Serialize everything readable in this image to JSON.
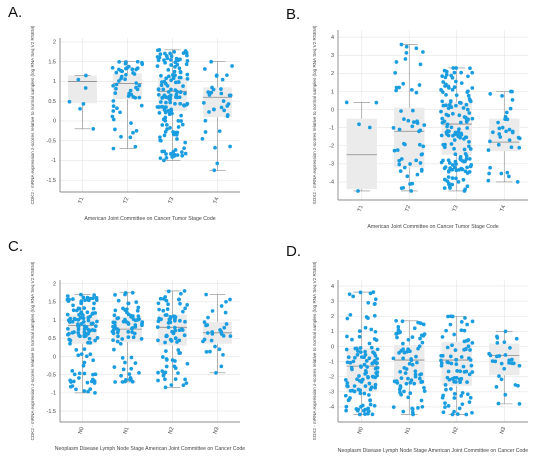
{
  "colors": {
    "point": "#1a9de0",
    "box": "#ebebeb",
    "whisker": "#888888",
    "axis": "#666666",
    "grid": "#e4e4e4",
    "text": "#444444"
  },
  "panels": [
    {
      "letter": "A."
    },
    {
      "letter": "B."
    },
    {
      "letter": "C."
    },
    {
      "letter": "D."
    }
  ],
  "chart_data": [
    {
      "type": "box",
      "panel": "A.",
      "ylabel": "CDK2 - mRNA expression z-scores relative to normal samples (log RNA Seq V2 RSEM)",
      "xlabel": "American Joint Committee on Cancer Tumor Stage Code",
      "categories": [
        "T1",
        "T2",
        "T3",
        "T4"
      ],
      "ylim": [
        -1.8,
        2.1
      ],
      "yticks": [
        -1.5,
        -1,
        -0.5,
        0,
        0.5,
        1,
        1.5,
        2
      ],
      "boxes": [
        {
          "min": -0.2,
          "q1": 0.45,
          "median": 1.0,
          "q3": 1.15,
          "max": 1.15,
          "n": 7
        },
        {
          "min": -0.7,
          "q1": 0.55,
          "median": 0.95,
          "q3": 1.2,
          "max": 1.5,
          "n": 55
        },
        {
          "min": -1.0,
          "q1": 0.25,
          "median": 0.75,
          "q3": 1.1,
          "max": 1.8,
          "n": 150
        },
        {
          "min": -1.25,
          "q1": 0.1,
          "median": 0.6,
          "q3": 0.85,
          "max": 1.5,
          "n": 35
        }
      ]
    },
    {
      "type": "box",
      "panel": "B.",
      "ylabel": "SOX2 - mRNA expression z-scores relative to normal samples (log RNA Seq V2 RSEM)",
      "xlabel": "American Joint Committee on Cancer Tumor Stage Code",
      "categories": [
        "T1",
        "T2",
        "T3",
        "T4"
      ],
      "ylim": [
        -5,
        4.4
      ],
      "yticks": [
        -4,
        -3,
        -2,
        -1,
        0,
        1,
        2,
        3,
        4
      ],
      "boxes": [
        {
          "min": -4.5,
          "q1": -4.4,
          "median": -2.5,
          "q3": -0.5,
          "max": 0.4,
          "n": 5
        },
        {
          "min": -4.5,
          "q1": -3.2,
          "median": -1.2,
          "q3": 0.1,
          "max": 3.6,
          "n": 55
        },
        {
          "min": -4.5,
          "q1": -2.5,
          "median": -0.8,
          "q3": 0.4,
          "max": 2.3,
          "n": 150
        },
        {
          "min": -4.0,
          "q1": -2.3,
          "median": -1.8,
          "q3": -0.5,
          "max": 1.0,
          "n": 35
        }
      ]
    },
    {
      "type": "box",
      "panel": "C.",
      "ylabel": "CDK2 - mRNA expression z-scores relative to normal samples (log RNA Seq V2 RSEM)",
      "xlabel": "Neoplasm Disease Lymph Node Stage American Joint Committee on Cancer Code",
      "categories": [
        "N0",
        "N1",
        "N2",
        "N3"
      ],
      "ylim": [
        -1.8,
        2.1
      ],
      "yticks": [
        -1.5,
        -1,
        -0.5,
        0,
        0.5,
        1,
        1.5,
        2
      ],
      "boxes": [
        {
          "min": -1.0,
          "q1": 0.35,
          "median": 0.85,
          "q3": 1.15,
          "max": 1.7,
          "n": 120
        },
        {
          "min": -0.7,
          "q1": 0.4,
          "median": 0.75,
          "q3": 1.1,
          "max": 1.75,
          "n": 80
        },
        {
          "min": -0.85,
          "q1": 0.3,
          "median": 0.8,
          "q3": 1.15,
          "max": 1.8,
          "n": 85
        },
        {
          "min": -0.45,
          "q1": 0.35,
          "median": 0.65,
          "q3": 0.95,
          "max": 1.7,
          "n": 30
        }
      ]
    },
    {
      "type": "box",
      "panel": "D.",
      "ylabel": "SOX2 - mRNA expression z-scores relative to normal samples (log RNA Seq V2 RSEM)",
      "xlabel": "Neoplasm Disease Lymph Node Stage American Joint Committee on Cancer Code",
      "categories": [
        "N0",
        "N1",
        "N2",
        "N3"
      ],
      "ylim": [
        -5,
        4.4
      ],
      "yticks": [
        -4,
        -3,
        -2,
        -1,
        0,
        1,
        2,
        3,
        4
      ],
      "boxes": [
        {
          "min": -4.5,
          "q1": -3.0,
          "median": -1.3,
          "q3": -0.1,
          "max": 3.6,
          "n": 120
        },
        {
          "min": -4.5,
          "q1": -2.5,
          "median": -0.9,
          "q3": 0.1,
          "max": 1.7,
          "n": 80
        },
        {
          "min": -4.5,
          "q1": -2.6,
          "median": -0.9,
          "q3": 0.3,
          "max": 2.0,
          "n": 85
        },
        {
          "min": -3.8,
          "q1": -1.9,
          "median": -0.6,
          "q3": 0.2,
          "max": 1.0,
          "n": 30
        }
      ]
    }
  ]
}
